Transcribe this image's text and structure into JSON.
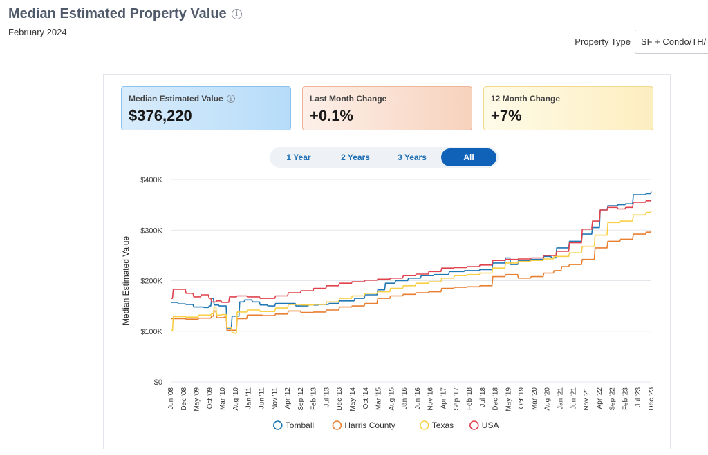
{
  "header": {
    "title": "Median Estimated Property Value",
    "info_icon": "info-icon",
    "subtitle": "February 2024"
  },
  "property_type": {
    "label": "Property Type",
    "value": "SF + Condo/TH/"
  },
  "stats": [
    {
      "label": "Median Estimated Value",
      "value": "$376,220",
      "has_info": true
    },
    {
      "label": "Last Month Change",
      "value": "+0.1%"
    },
    {
      "label": "12 Month Change",
      "value": "+7%"
    }
  ],
  "range_tabs": [
    {
      "label": "1 Year",
      "active": false
    },
    {
      "label": "2 Years",
      "active": false
    },
    {
      "label": "3 Years",
      "active": false
    },
    {
      "label": "All",
      "active": true
    }
  ],
  "colors": {
    "tomball": "#1f77b4",
    "harris": "#e87f31",
    "texas": "#f9cf46",
    "usa": "#e0434e",
    "grid": "#e4e7ec"
  },
  "chart_data": {
    "type": "line",
    "ylabel": "Median Estimated Value",
    "xlabel": "",
    "ylim": [
      0,
      400000
    ],
    "y_ticks": [
      0,
      100000,
      200000,
      300000,
      400000
    ],
    "y_tick_labels": [
      "$0",
      "$100K",
      "$200K",
      "$300K",
      "$400K"
    ],
    "x_range": [
      "2008-06",
      "2024-02"
    ],
    "x_tick_labels": [
      "Jun '08",
      "Dec '08",
      "May '09",
      "Oct '09",
      "Mar '10",
      "Aug '10",
      "Jan '11",
      "Jun '11",
      "Nov '11",
      "Apr '12",
      "Sep '12",
      "Feb '13",
      "Jul '13",
      "Dec '13",
      "May '14",
      "Oct '14",
      "Mar '15",
      "Aug '15",
      "Jan '16",
      "Jun '16",
      "Nov '16",
      "Apr '17",
      "Sep '17",
      "Feb '18",
      "Jul '18",
      "Dec '18",
      "May '19",
      "Oct '19",
      "Mar '20",
      "Aug '20",
      "Jan '21",
      "Jun '21",
      "Nov '21",
      "Apr '22",
      "Sep '22",
      "Feb '23",
      "Jul '23",
      "Dec '23"
    ],
    "legend_position": "bottom",
    "grid": true,
    "series": [
      {
        "name": "Tomball",
        "points": [
          [
            "2008-06",
            157000
          ],
          [
            "2008-09",
            154000
          ],
          [
            "2008-12",
            153000
          ],
          [
            "2009-03",
            148000
          ],
          [
            "2009-07",
            147000
          ],
          [
            "2009-09",
            150000
          ],
          [
            "2009-10",
            165000
          ],
          [
            "2009-11",
            152000
          ],
          [
            "2010-01",
            150000
          ],
          [
            "2010-03",
            150000
          ],
          [
            "2010-04",
            105000
          ],
          [
            "2010-06",
            130000
          ],
          [
            "2010-09",
            158000
          ],
          [
            "2010-11",
            162000
          ],
          [
            "2011-02",
            158000
          ],
          [
            "2011-05",
            152000
          ],
          [
            "2011-08",
            150000
          ],
          [
            "2011-11",
            155000
          ],
          [
            "2012-03",
            155000
          ],
          [
            "2012-07",
            150000
          ],
          [
            "2012-12",
            152000
          ],
          [
            "2013-04",
            153000
          ],
          [
            "2013-08",
            155000
          ],
          [
            "2013-12",
            160000
          ],
          [
            "2014-06",
            165000
          ],
          [
            "2014-10",
            172000
          ],
          [
            "2015-03",
            182000
          ],
          [
            "2015-06",
            195000
          ],
          [
            "2015-10",
            200000
          ],
          [
            "2016-03",
            205000
          ],
          [
            "2016-08",
            210000
          ],
          [
            "2017-01",
            212000
          ],
          [
            "2017-07",
            218000
          ],
          [
            "2018-01",
            220000
          ],
          [
            "2018-07",
            222000
          ],
          [
            "2018-12",
            235000
          ],
          [
            "2019-05",
            245000
          ],
          [
            "2019-07",
            232000
          ],
          [
            "2019-10",
            240000
          ],
          [
            "2020-03",
            242000
          ],
          [
            "2020-08",
            248000
          ],
          [
            "2020-11",
            245000
          ],
          [
            "2021-01",
            265000
          ],
          [
            "2021-06",
            278000
          ],
          [
            "2021-11",
            292000
          ],
          [
            "2022-03",
            305000
          ],
          [
            "2022-06",
            340000
          ],
          [
            "2022-09",
            348000
          ],
          [
            "2023-01",
            350000
          ],
          [
            "2023-04",
            352000
          ],
          [
            "2023-07",
            370000
          ],
          [
            "2023-12",
            372000
          ],
          [
            "2024-02",
            376220
          ]
        ]
      },
      {
        "name": "Harris County",
        "points": [
          [
            "2008-06",
            125000
          ],
          [
            "2008-12",
            124000
          ],
          [
            "2009-05",
            126000
          ],
          [
            "2009-10",
            130000
          ],
          [
            "2009-11",
            140000
          ],
          [
            "2009-12",
            127000
          ],
          [
            "2010-03",
            128000
          ],
          [
            "2010-04",
            102000
          ],
          [
            "2010-08",
            125000
          ],
          [
            "2010-12",
            132000
          ],
          [
            "2011-06",
            131000
          ],
          [
            "2011-11",
            134000
          ],
          [
            "2012-04",
            140000
          ],
          [
            "2012-09",
            137000
          ],
          [
            "2013-02",
            138000
          ],
          [
            "2013-07",
            142000
          ],
          [
            "2013-12",
            148000
          ],
          [
            "2014-05",
            150000
          ],
          [
            "2014-10",
            155000
          ],
          [
            "2015-03",
            165000
          ],
          [
            "2015-08",
            170000
          ],
          [
            "2016-01",
            173000
          ],
          [
            "2016-06",
            176000
          ],
          [
            "2016-11",
            178000
          ],
          [
            "2017-04",
            185000
          ],
          [
            "2017-09",
            187000
          ],
          [
            "2018-02",
            188000
          ],
          [
            "2018-07",
            190000
          ],
          [
            "2018-12",
            208000
          ],
          [
            "2019-05",
            212000
          ],
          [
            "2019-10",
            205000
          ],
          [
            "2020-03",
            208000
          ],
          [
            "2020-08",
            215000
          ],
          [
            "2020-12",
            220000
          ],
          [
            "2021-03",
            228000
          ],
          [
            "2021-06",
            232000
          ],
          [
            "2021-11",
            242000
          ],
          [
            "2022-04",
            265000
          ],
          [
            "2022-09",
            278000
          ],
          [
            "2023-02",
            282000
          ],
          [
            "2023-07",
            292000
          ],
          [
            "2023-12",
            296000
          ],
          [
            "2024-02",
            299000
          ]
        ]
      },
      {
        "name": "Texas",
        "points": [
          [
            "2008-06",
            102000
          ],
          [
            "2008-07",
            129000
          ],
          [
            "2008-12",
            128000
          ],
          [
            "2009-05",
            132000
          ],
          [
            "2009-10",
            135000
          ],
          [
            "2009-11",
            148000
          ],
          [
            "2009-12",
            132000
          ],
          [
            "2010-02",
            133000
          ],
          [
            "2010-04",
            108000
          ],
          [
            "2010-06",
            97000
          ],
          [
            "2010-07",
            96000
          ],
          [
            "2010-08",
            138000
          ],
          [
            "2010-12",
            142000
          ],
          [
            "2011-05",
            139000
          ],
          [
            "2011-11",
            146000
          ],
          [
            "2012-04",
            153000
          ],
          [
            "2012-09",
            152000
          ],
          [
            "2013-02",
            153000
          ],
          [
            "2013-07",
            158000
          ],
          [
            "2013-12",
            165000
          ],
          [
            "2014-05",
            170000
          ],
          [
            "2014-10",
            175000
          ],
          [
            "2015-03",
            178000
          ],
          [
            "2015-08",
            185000
          ],
          [
            "2016-01",
            190000
          ],
          [
            "2016-06",
            195000
          ],
          [
            "2016-11",
            198000
          ],
          [
            "2017-04",
            205000
          ],
          [
            "2017-09",
            210000
          ],
          [
            "2018-02",
            212000
          ],
          [
            "2018-07",
            215000
          ],
          [
            "2018-12",
            225000
          ],
          [
            "2019-05",
            235000
          ],
          [
            "2019-10",
            238000
          ],
          [
            "2020-03",
            240000
          ],
          [
            "2020-08",
            243000
          ],
          [
            "2020-12",
            248000
          ],
          [
            "2021-06",
            255000
          ],
          [
            "2021-11",
            268000
          ],
          [
            "2022-04",
            290000
          ],
          [
            "2022-09",
            315000
          ],
          [
            "2023-02",
            318000
          ],
          [
            "2023-07",
            330000
          ],
          [
            "2023-12",
            335000
          ],
          [
            "2024-02",
            338000
          ]
        ]
      },
      {
        "name": "USA",
        "points": [
          [
            "2008-06",
            165000
          ],
          [
            "2008-07",
            183000
          ],
          [
            "2008-12",
            175000
          ],
          [
            "2009-03",
            168000
          ],
          [
            "2009-06",
            172000
          ],
          [
            "2009-09",
            165000
          ],
          [
            "2009-10",
            158000
          ],
          [
            "2009-12",
            160000
          ],
          [
            "2010-02",
            157000
          ],
          [
            "2010-05",
            168000
          ],
          [
            "2010-08",
            170000
          ],
          [
            "2010-12",
            168000
          ],
          [
            "2011-05",
            165000
          ],
          [
            "2011-11",
            170000
          ],
          [
            "2012-04",
            176000
          ],
          [
            "2012-09",
            180000
          ],
          [
            "2013-02",
            185000
          ],
          [
            "2013-07",
            190000
          ],
          [
            "2013-12",
            195000
          ],
          [
            "2014-05",
            198000
          ],
          [
            "2014-10",
            201000
          ],
          [
            "2015-03",
            203000
          ],
          [
            "2015-08",
            205000
          ],
          [
            "2016-01",
            210000
          ],
          [
            "2016-06",
            213000
          ],
          [
            "2016-11",
            218000
          ],
          [
            "2017-04",
            225000
          ],
          [
            "2017-09",
            226000
          ],
          [
            "2018-02",
            228000
          ],
          [
            "2018-07",
            231000
          ],
          [
            "2018-12",
            240000
          ],
          [
            "2019-05",
            242000
          ],
          [
            "2019-10",
            243000
          ],
          [
            "2020-03",
            245000
          ],
          [
            "2020-08",
            250000
          ],
          [
            "2021-01",
            258000
          ],
          [
            "2021-06",
            275000
          ],
          [
            "2021-11",
            302000
          ],
          [
            "2022-03",
            318000
          ],
          [
            "2022-06",
            340000
          ],
          [
            "2022-09",
            345000
          ],
          [
            "2023-01",
            342000
          ],
          [
            "2023-04",
            345000
          ],
          [
            "2023-07",
            355000
          ],
          [
            "2023-12",
            358000
          ],
          [
            "2024-02",
            360000
          ]
        ]
      }
    ]
  }
}
